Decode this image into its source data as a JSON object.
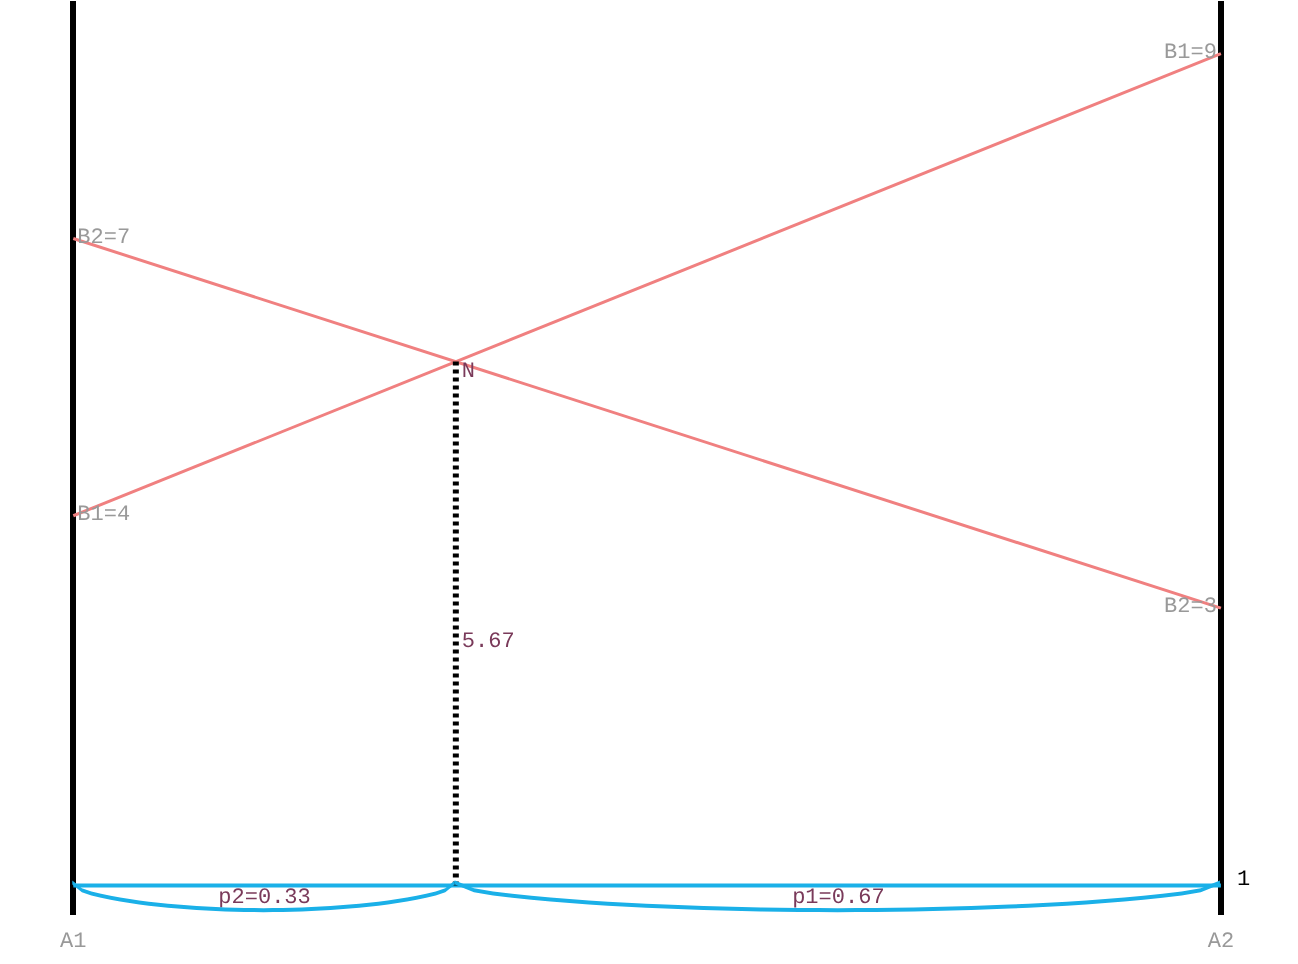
{
  "chart_data": {
    "type": "line",
    "categories": [
      "A1",
      "A2"
    ],
    "ylim": [
      -0.32,
      9.57
    ],
    "tick_labels": "x",
    "grid": "x",
    "marker": "none",
    "line_style": "solid",
    "series": [
      {
        "color": "#f08080",
        "values": [
          4,
          9
        ],
        "value_labels": [
          "B1=4",
          "B1=9"
        ]
      },
      {
        "color": "#f08080",
        "values": [
          7,
          3
        ],
        "value_labels": [
          "B2=7",
          "B2=3"
        ]
      }
    ],
    "annotations": [
      {
        "text": "N",
        "y": 5.67
      },
      "5.67",
      "p2=0.33",
      "p1=0.67",
      "1"
    ],
    "ref_lines": [
      {
        "axis": "y",
        "value": 0,
        "color": "#1ab0e8"
      }
    ]
  }
}
